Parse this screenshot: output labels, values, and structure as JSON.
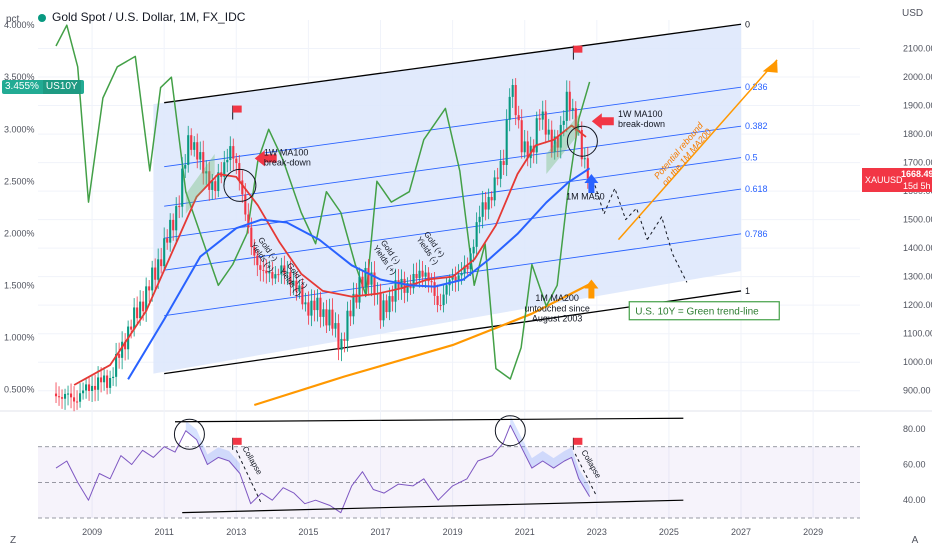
{
  "header": {
    "title": "Gold Spot / U.S. Dollar, 1M, FX_IDC",
    "left_unit": "pct",
    "right_unit": "USD"
  },
  "us10y_tag": {
    "value": "3.455%",
    "name": "US10Y"
  },
  "price_tag": {
    "symbol": "XAUUSD",
    "price": "1668.49",
    "countdown": "15d 5h"
  },
  "corner_buttons": {
    "left": "Z",
    "right": "A"
  },
  "chart_data": [
    {
      "type": "candlestick",
      "title": "Gold Spot / U.S. Dollar, 1M, FX_IDC",
      "x_unit": "year",
      "xlim": [
        2007.5,
        2030.3
      ],
      "ylim_right": [
        850,
        2200
      ],
      "ylim_left_pct": [
        0.35,
        4.05
      ],
      "grid": true,
      "x_ticks": [
        "2009",
        "2011",
        "2013",
        "2015",
        "2017",
        "2019",
        "2021",
        "2023",
        "2025",
        "2027",
        "2029"
      ],
      "y_ticks_right": [
        "2100.00",
        "2000.00",
        "1900.00",
        "1800.00",
        "1700.00",
        "1600.00",
        "1500.00",
        "1400.00",
        "1300.00",
        "1200.00",
        "1100.00",
        "1000.00",
        "900.00"
      ],
      "y_ticks_left": [
        "4.000%",
        "3.500%",
        "3.000%",
        "2.500%",
        "2.000%",
        "1.500%",
        "1.000%",
        "0.500%"
      ],
      "gold_close": [
        [
          2008.0,
          890
        ],
        [
          2008.5,
          870
        ],
        [
          2009.0,
          920
        ],
        [
          2009.5,
          940
        ],
        [
          2010.0,
          1110
        ],
        [
          2010.5,
          1240
        ],
        [
          2011.0,
          1400
        ],
        [
          2011.4,
          1560
        ],
        [
          2011.7,
          1800
        ],
        [
          2012.0,
          1700
        ],
        [
          2012.4,
          1600
        ],
        [
          2012.8,
          1750
        ],
        [
          2013.1,
          1650
        ],
        [
          2013.4,
          1400
        ],
        [
          2013.8,
          1300
        ],
        [
          2014.2,
          1320
        ],
        [
          2014.5,
          1300
        ],
        [
          2014.9,
          1200
        ],
        [
          2015.3,
          1190
        ],
        [
          2015.6,
          1150
        ],
        [
          2015.9,
          1060
        ],
        [
          2016.4,
          1280
        ],
        [
          2016.8,
          1300
        ],
        [
          2017.0,
          1160
        ],
        [
          2017.4,
          1260
        ],
        [
          2017.9,
          1280
        ],
        [
          2018.2,
          1330
        ],
        [
          2018.6,
          1200
        ],
        [
          2019.0,
          1300
        ],
        [
          2019.4,
          1320
        ],
        [
          2019.7,
          1500
        ],
        [
          2020.1,
          1600
        ],
        [
          2020.4,
          1700
        ],
        [
          2020.6,
          1980
        ],
        [
          2020.9,
          1780
        ],
        [
          2021.2,
          1710
        ],
        [
          2021.4,
          1900
        ],
        [
          2021.7,
          1760
        ],
        [
          2022.0,
          1800
        ],
        [
          2022.2,
          1940
        ],
        [
          2022.4,
          1850
        ],
        [
          2022.6,
          1710
        ],
        [
          2022.8,
          1668
        ]
      ],
      "ma_1w100": [
        [
          2008.5,
          920
        ],
        [
          2009.5,
          990
        ],
        [
          2010.5,
          1180
        ],
        [
          2011.2,
          1380
        ],
        [
          2011.9,
          1580
        ],
        [
          2012.5,
          1660
        ],
        [
          2013.0,
          1650
        ],
        [
          2013.6,
          1550
        ],
        [
          2014.2,
          1420
        ],
        [
          2014.8,
          1310
        ],
        [
          2015.4,
          1250
        ],
        [
          2016.2,
          1230
        ],
        [
          2016.9,
          1240
        ],
        [
          2017.6,
          1260
        ],
        [
          2018.3,
          1290
        ],
        [
          2019.0,
          1300
        ],
        [
          2019.6,
          1360
        ],
        [
          2020.2,
          1480
        ],
        [
          2020.8,
          1660
        ],
        [
          2021.3,
          1760
        ],
        [
          2021.8,
          1780
        ],
        [
          2022.3,
          1830
        ],
        [
          2022.7,
          1790
        ]
      ],
      "ma_1m50": [
        [
          2010.0,
          940
        ],
        [
          2011.0,
          1150
        ],
        [
          2012.0,
          1370
        ],
        [
          2013.0,
          1470
        ],
        [
          2013.7,
          1500
        ],
        [
          2014.4,
          1490
        ],
        [
          2015.3,
          1430
        ],
        [
          2016.2,
          1340
        ],
        [
          2017.0,
          1290
        ],
        [
          2017.8,
          1270
        ],
        [
          2018.5,
          1265
        ],
        [
          2019.3,
          1290
        ],
        [
          2020.0,
          1360
        ],
        [
          2020.8,
          1450
        ],
        [
          2021.6,
          1560
        ],
        [
          2022.2,
          1630
        ],
        [
          2022.8,
          1680
        ]
      ],
      "ma_1m200": [
        [
          2013.5,
          850
        ],
        [
          2016.0,
          950
        ],
        [
          2019.0,
          1060
        ],
        [
          2021.2,
          1170
        ],
        [
          2022.9,
          1280
        ]
      ],
      "us10y_green": [
        [
          2008.0,
          3.8
        ],
        [
          2008.3,
          4.0
        ],
        [
          2008.6,
          3.6
        ],
        [
          2008.9,
          2.3
        ],
        [
          2009.3,
          3.3
        ],
        [
          2009.7,
          3.6
        ],
        [
          2010.2,
          3.7
        ],
        [
          2010.6,
          2.6
        ],
        [
          2010.9,
          3.4
        ],
        [
          2011.2,
          3.5
        ],
        [
          2011.6,
          2.4
        ],
        [
          2012.0,
          2.0
        ],
        [
          2012.5,
          1.5
        ],
        [
          2012.9,
          1.7
        ],
        [
          2013.3,
          2.0
        ],
        [
          2013.6,
          2.7
        ],
        [
          2013.9,
          3.0
        ],
        [
          2014.3,
          2.7
        ],
        [
          2014.8,
          2.2
        ],
        [
          2015.2,
          1.9
        ],
        [
          2015.5,
          2.4
        ],
        [
          2015.9,
          2.2
        ],
        [
          2016.3,
          1.7
        ],
        [
          2016.6,
          1.4
        ],
        [
          2016.9,
          2.5
        ],
        [
          2017.3,
          2.3
        ],
        [
          2017.8,
          2.4
        ],
        [
          2018.2,
          2.9
        ],
        [
          2018.8,
          3.2
        ],
        [
          2019.2,
          2.6
        ],
        [
          2019.6,
          1.5
        ],
        [
          2019.9,
          1.9
        ],
        [
          2020.2,
          0.7
        ],
        [
          2020.6,
          0.6
        ],
        [
          2020.9,
          0.9
        ],
        [
          2021.2,
          1.7
        ],
        [
          2021.6,
          1.3
        ],
        [
          2021.9,
          1.5
        ],
        [
          2022.2,
          2.4
        ],
        [
          2022.5,
          3.1
        ],
        [
          2022.8,
          3.455
        ]
      ],
      "channel_fib_levels": [
        "0",
        "0.236",
        "0.382",
        "0.5",
        "0.618",
        "0.786",
        "1"
      ],
      "annotations": [
        "1W MA100\nbreak-down",
        "1W MA100\nbreak-down",
        "1M MA50",
        "1M MA200\nuntouched since\nAugust 2003",
        "U.S. 10Y = Green trend-line",
        "Potential rebound\non the 1M MA200",
        "Gold (-)\nYields (+)",
        "Gold (+)\nYields (-)",
        "Gold (-)\nYields (+)",
        "Gold (+)\nYields (-)"
      ],
      "colors": {
        "bull": "#089981",
        "bear": "#f23645",
        "ma_red": "#e53935",
        "ma_blue": "#2962ff",
        "ma200": "#ff9800",
        "us10y": "#43a047",
        "channel": "#2962ff",
        "fill": "#dce6fb"
      }
    },
    {
      "type": "line",
      "title": "",
      "ylim": [
        30,
        85
      ],
      "y_ticks": [
        "80.00",
        "60.00",
        "40.00"
      ],
      "levels": [
        70,
        50,
        30
      ],
      "values": [
        [
          2008.0,
          58
        ],
        [
          2008.3,
          62
        ],
        [
          2008.6,
          50
        ],
        [
          2008.9,
          40
        ],
        [
          2009.2,
          55
        ],
        [
          2009.5,
          52
        ],
        [
          2009.8,
          65
        ],
        [
          2010.1,
          60
        ],
        [
          2010.4,
          68
        ],
        [
          2010.7,
          64
        ],
        [
          2011.0,
          70
        ],
        [
          2011.3,
          67
        ],
        [
          2011.6,
          79
        ],
        [
          2011.9,
          74
        ],
        [
          2012.2,
          60
        ],
        [
          2012.5,
          64
        ],
        [
          2012.8,
          62
        ],
        [
          2013.1,
          55
        ],
        [
          2013.4,
          38
        ],
        [
          2013.7,
          44
        ],
        [
          2014.0,
          40
        ],
        [
          2014.3,
          47
        ],
        [
          2014.6,
          44
        ],
        [
          2014.9,
          38
        ],
        [
          2015.2,
          40
        ],
        [
          2015.6,
          37
        ],
        [
          2015.9,
          33
        ],
        [
          2016.2,
          48
        ],
        [
          2016.5,
          56
        ],
        [
          2016.8,
          46
        ],
        [
          2017.1,
          44
        ],
        [
          2017.5,
          49
        ],
        [
          2017.9,
          48
        ],
        [
          2018.2,
          52
        ],
        [
          2018.6,
          40
        ],
        [
          2019.0,
          48
        ],
        [
          2019.4,
          52
        ],
        [
          2019.7,
          62
        ],
        [
          2020.1,
          65
        ],
        [
          2020.4,
          72
        ],
        [
          2020.6,
          82
        ],
        [
          2020.9,
          70
        ],
        [
          2021.2,
          58
        ],
        [
          2021.5,
          62
        ],
        [
          2021.8,
          58
        ],
        [
          2022.1,
          62
        ],
        [
          2022.3,
          64
        ],
        [
          2022.5,
          52
        ],
        [
          2022.8,
          42
        ]
      ],
      "annotations": [
        "Collapse",
        "Collapse"
      ]
    }
  ]
}
